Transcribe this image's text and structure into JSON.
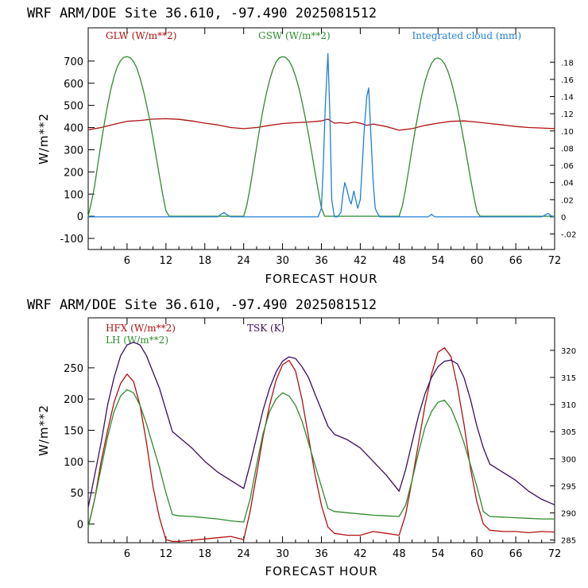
{
  "chart_data": [
    {
      "type": "line",
      "header": "WRF  ARM/DOE Site  36.610, -97.490  2025081512",
      "ylabel": "W/m**2",
      "xlabel": "FORECAST HOUR",
      "xlim": [
        0,
        72
      ],
      "ylim": [
        -150,
        850
      ],
      "y2lim": [
        -0.038,
        0.22
      ],
      "x_ticks": [
        "6",
        "12",
        "18",
        "24",
        "30",
        "36",
        "42",
        "48",
        "54",
        "60",
        "66",
        "72"
      ],
      "y_ticks": [
        "-100",
        "0",
        "100",
        "200",
        "300",
        "400",
        "500",
        "600",
        "700"
      ],
      "y2_ticks": [
        "-.02",
        "0",
        ".02",
        ".04",
        ".06",
        ".08",
        ".10",
        ".12",
        ".14",
        ".16",
        ".18"
      ],
      "legend": [
        "GLW (W/m**2)",
        "GSW (W/m**2)",
        "Integrated cloud (mm)"
      ],
      "series": [
        {
          "name": "GLW (W/m**2)",
          "color": "#b01010",
          "axis": "left",
          "x": [
            0,
            2,
            4,
            6,
            8,
            10,
            12,
            14,
            16,
            18,
            20,
            22,
            24,
            26,
            28,
            30,
            32,
            34,
            36,
            37,
            38,
            39,
            40,
            41,
            42,
            43,
            44,
            46,
            48,
            50,
            52,
            54,
            56,
            58,
            60,
            62,
            64,
            66,
            68,
            70,
            72
          ],
          "y": [
            390,
            400,
            415,
            428,
            432,
            438,
            440,
            437,
            430,
            420,
            412,
            400,
            395,
            400,
            410,
            418,
            422,
            425,
            430,
            438,
            420,
            422,
            418,
            425,
            420,
            410,
            416,
            405,
            388,
            395,
            410,
            420,
            428,
            430,
            425,
            418,
            412,
            405,
            400,
            398,
            395
          ]
        },
        {
          "name": "GSW (W/m**2)",
          "color": "#2e8b2e",
          "axis": "left",
          "x": [
            0,
            0.5,
            1,
            1.5,
            2,
            2.5,
            3,
            3.5,
            4,
            4.5,
            5,
            5.5,
            6,
            6.5,
            7,
            7.5,
            8,
            8.5,
            9,
            9.5,
            10,
            10.5,
            11,
            11.5,
            12,
            12.5,
            13,
            13.5,
            14,
            24,
            24.5,
            25,
            25.5,
            26,
            26.5,
            27,
            27.5,
            28,
            28.5,
            29,
            29.5,
            30,
            30.5,
            31,
            31.5,
            32,
            32.5,
            33,
            33.5,
            34,
            34.5,
            35,
            35.5,
            36,
            36.5,
            37,
            37.5,
            38,
            48,
            48.5,
            49,
            49.5,
            50,
            50.5,
            51,
            51.5,
            52,
            52.5,
            53,
            53.5,
            54,
            54.5,
            55,
            55.5,
            56,
            56.5,
            57,
            57.5,
            58,
            58.5,
            59,
            59.5,
            60,
            60.5,
            61,
            61.5,
            62,
            72
          ],
          "y": [
            0,
            64,
            140,
            236,
            331,
            421,
            502,
            573,
            631,
            675,
            702,
            717,
            720,
            715,
            698,
            669,
            624,
            569,
            504,
            432,
            352,
            267,
            181,
            98,
            25,
            0,
            0,
            0,
            0,
            0,
            51,
            130,
            221,
            313,
            400,
            482,
            554,
            614,
            662,
            695,
            715,
            720,
            716,
            701,
            673,
            632,
            581,
            518,
            446,
            371,
            287,
            202,
            117,
            38,
            0,
            0,
            0,
            0,
            0,
            47,
            125,
            215,
            305,
            393,
            473,
            547,
            608,
            655,
            690,
            709,
            714,
            707,
            688,
            656,
            611,
            555,
            490,
            417,
            339,
            257,
            173,
            93,
            21,
            0,
            0,
            0,
            0,
            0
          ]
        },
        {
          "name": "Integrated cloud (mm)",
          "color": "#1e7fd8",
          "axis": "right",
          "x": [
            0,
            20,
            20.5,
            21,
            21.5,
            22,
            35.5,
            36,
            36.3,
            36.6,
            37,
            37.3,
            37.6,
            38,
            38.5,
            39,
            39.3,
            39.6,
            40,
            40.3,
            40.6,
            41,
            41.3,
            41.6,
            42,
            42.3,
            42.6,
            43,
            43.3,
            43.6,
            44,
            44.3,
            44.6,
            45,
            52.5,
            53,
            53.5,
            70,
            70.5,
            71,
            71.5,
            72
          ],
          "y": [
            0,
            0,
            0.003,
            0.005,
            0.002,
            0,
            0,
            0.01,
            0.06,
            0.13,
            0.19,
            0.12,
            0.02,
            0,
            0,
            0.005,
            0.025,
            0.04,
            0.03,
            0.02,
            0.015,
            0.03,
            0.02,
            0.01,
            0.02,
            0.06,
            0.1,
            0.14,
            0.15,
            0.1,
            0.04,
            0.01,
            0.005,
            0,
            0,
            0.003,
            0,
            0,
            0.002,
            0.004,
            0.001,
            0
          ]
        }
      ]
    },
    {
      "type": "line",
      "header": "WRF  ARM/DOE Site  36.610, -97.490  2025081512",
      "ylabel": "W/m**2",
      "xlabel": "FORECAST HOUR",
      "xlim": [
        0,
        72
      ],
      "ylim": [
        -30,
        330
      ],
      "y2lim": [
        284.5,
        326
      ],
      "x_ticks": [
        "6",
        "12",
        "18",
        "24",
        "30",
        "36",
        "42",
        "48",
        "54",
        "60",
        "66",
        "72"
      ],
      "y_ticks": [
        "0",
        "50",
        "100",
        "150",
        "200",
        "250"
      ],
      "y2_ticks": [
        "285",
        "290",
        "295",
        "300",
        "305",
        "310",
        "315",
        "320"
      ],
      "legend": [
        "HFX (W/m**2)",
        "LH (W/m**2)",
        "TSK (K)"
      ],
      "series": [
        {
          "name": "HFX (W/m**2)",
          "color": "#b01010",
          "axis": "left",
          "x": [
            0,
            1,
            2,
            3,
            4,
            5,
            6,
            7,
            8,
            9,
            10,
            11,
            12,
            13,
            14,
            16,
            18,
            20,
            22,
            24,
            25,
            26,
            27,
            28,
            29,
            30,
            31,
            32,
            33,
            34,
            35,
            36,
            37,
            38,
            40,
            42,
            44,
            46,
            48,
            49,
            50,
            51,
            52,
            53,
            54,
            55,
            56,
            57,
            58,
            59,
            60,
            61,
            62,
            64,
            66,
            68,
            70,
            72
          ],
          "y": [
            -5,
            40,
            100,
            150,
            195,
            225,
            240,
            228,
            190,
            130,
            60,
            10,
            -25,
            -28,
            -28,
            -26,
            -24,
            -22,
            -20,
            -25,
            20,
            80,
            140,
            190,
            230,
            255,
            262,
            245,
            200,
            140,
            80,
            30,
            -5,
            -15,
            -18,
            -18,
            -12,
            -15,
            -18,
            15,
            70,
            130,
            190,
            240,
            275,
            282,
            268,
            220,
            160,
            90,
            35,
            0,
            -10,
            -12,
            -12,
            -14,
            -12,
            -13
          ]
        },
        {
          "name": "LH (W/m**2)",
          "color": "#2e8b2e",
          "axis": "left",
          "x": [
            0,
            1,
            2,
            3,
            4,
            5,
            6,
            7,
            8,
            9,
            10,
            11,
            12,
            13,
            14,
            16,
            18,
            20,
            22,
            24,
            25,
            26,
            27,
            28,
            29,
            30,
            31,
            32,
            33,
            34,
            35,
            36,
            37,
            38,
            40,
            42,
            44,
            46,
            48,
            49,
            50,
            51,
            52,
            53,
            54,
            55,
            56,
            57,
            58,
            59,
            60,
            61,
            62,
            64,
            66,
            68,
            70,
            72
          ],
          "y": [
            -5,
            40,
            90,
            140,
            180,
            205,
            215,
            210,
            190,
            160,
            125,
            90,
            50,
            15,
            13,
            12,
            10,
            8,
            5,
            3,
            40,
            95,
            145,
            180,
            200,
            210,
            205,
            190,
            165,
            130,
            95,
            60,
            25,
            20,
            18,
            16,
            14,
            13,
            12,
            30,
            70,
            115,
            155,
            180,
            195,
            198,
            185,
            160,
            130,
            95,
            60,
            20,
            12,
            11,
            10,
            9,
            8,
            8
          ]
        },
        {
          "name": "TSK (K)",
          "color": "#3a0e5e",
          "axis": "right",
          "x": [
            0,
            1,
            2,
            3,
            4,
            5,
            6,
            7,
            8,
            9,
            10,
            11,
            12,
            13,
            14,
            16,
            18,
            20,
            22,
            24,
            25,
            26,
            27,
            28,
            29,
            30,
            31,
            32,
            33,
            34,
            35,
            36,
            37,
            38,
            40,
            42,
            44,
            46,
            48,
            49,
            50,
            51,
            52,
            53,
            54,
            55,
            56,
            57,
            58,
            59,
            60,
            61,
            62,
            64,
            66,
            68,
            70,
            72
          ],
          "y": [
            291,
            297,
            303,
            310,
            315,
            319,
            321,
            321.5,
            321,
            319,
            316,
            313,
            309,
            305,
            304,
            302,
            299.5,
            297.5,
            296,
            294.5,
            299,
            304,
            309,
            313,
            316,
            318,
            318.8,
            318.5,
            317,
            315,
            312,
            309,
            306,
            304.5,
            303.5,
            302,
            299.5,
            297,
            294,
            298,
            303,
            308,
            312,
            315,
            317,
            318,
            318.2,
            317.5,
            315,
            311,
            306,
            302,
            299,
            297.5,
            296,
            294,
            292.5,
            291.5
          ]
        }
      ]
    }
  ]
}
